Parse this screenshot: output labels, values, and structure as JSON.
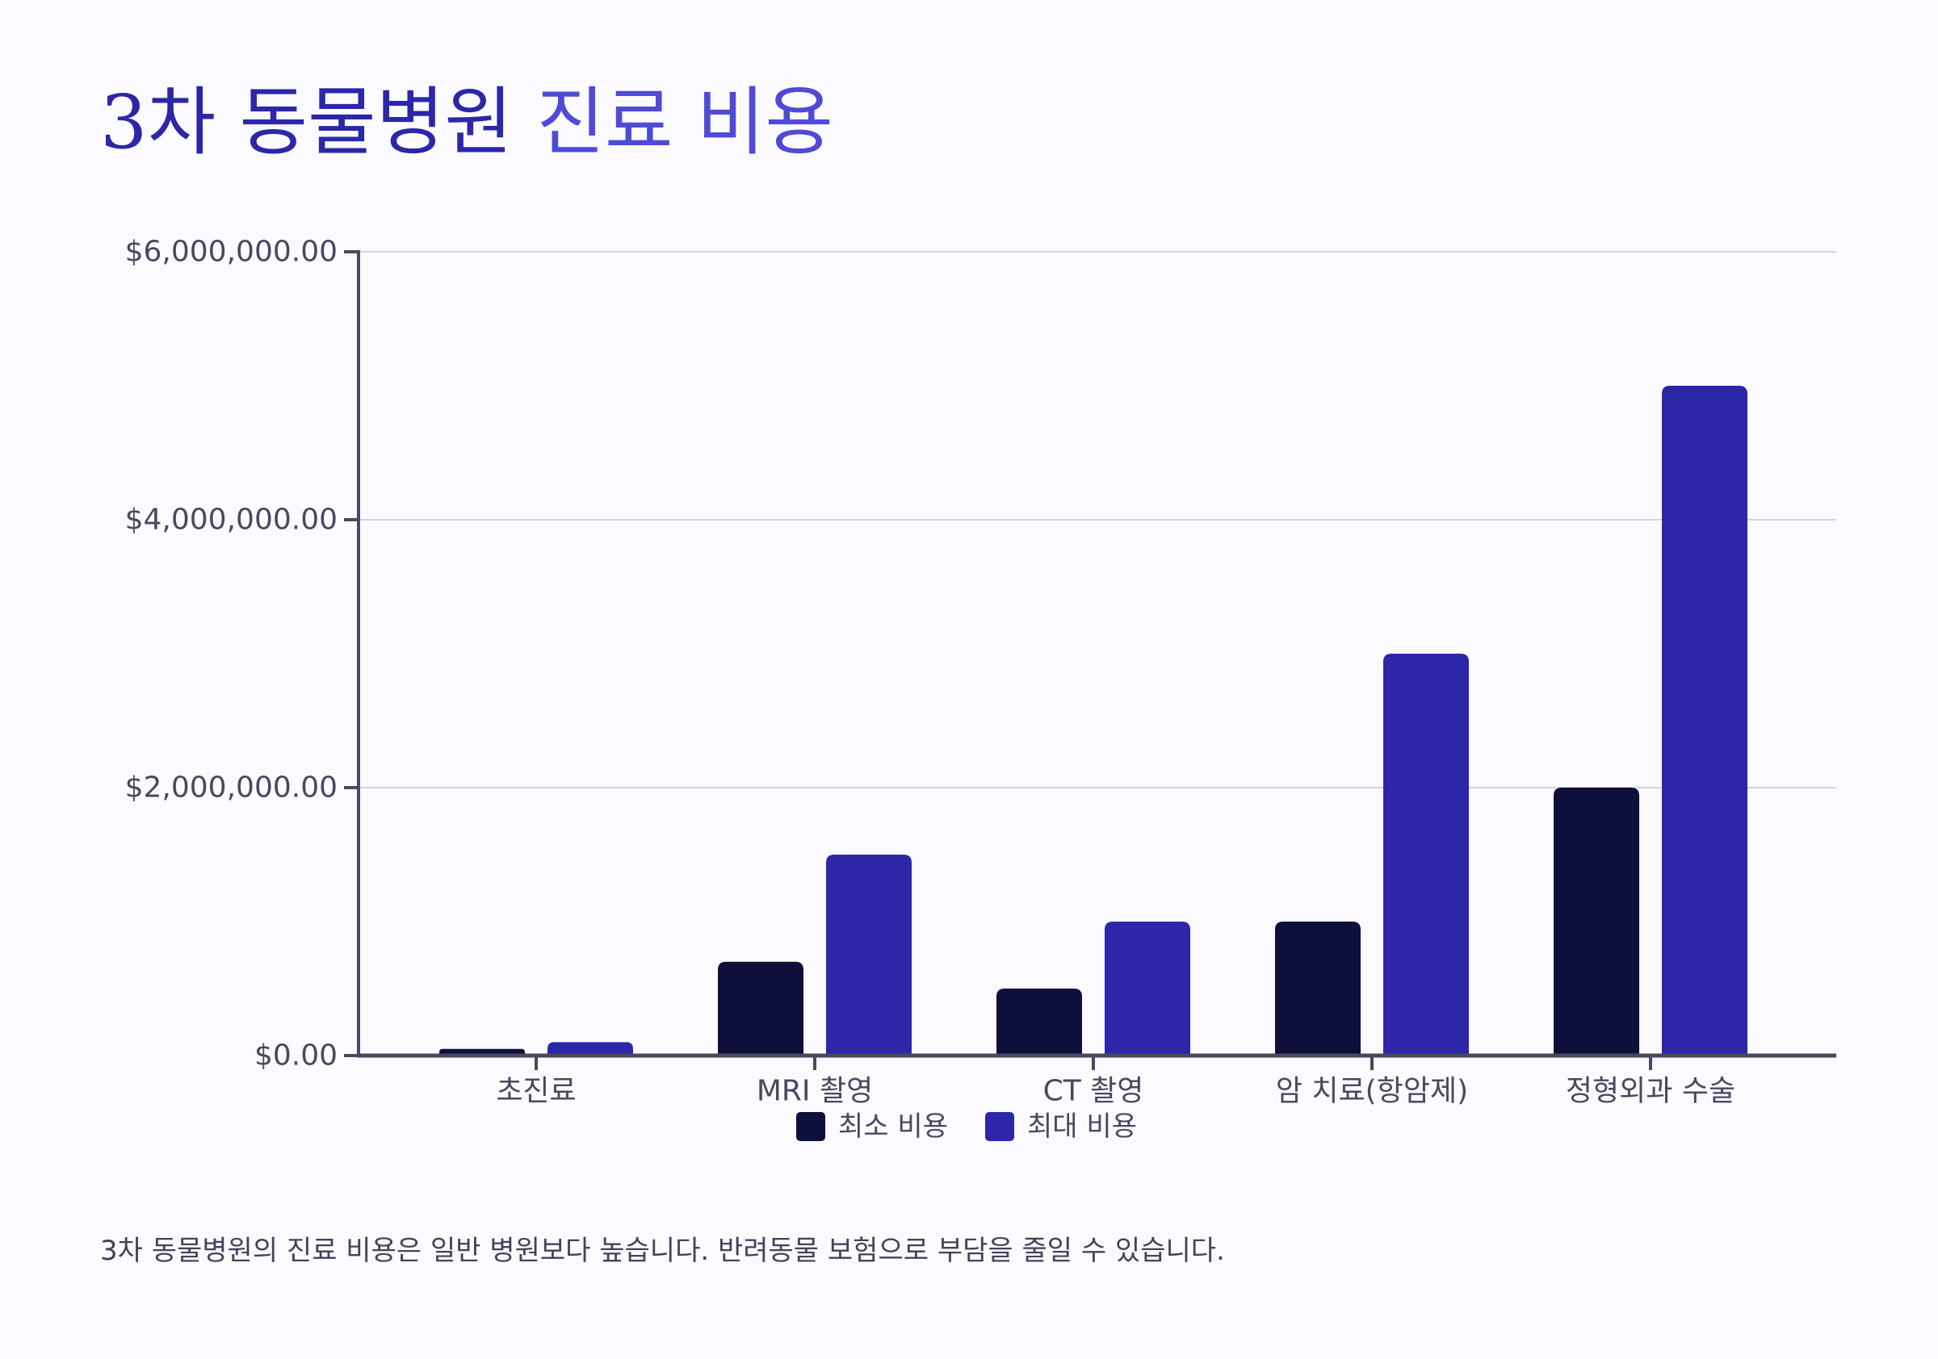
{
  "title": {
    "part1": "3차 동물병원",
    "part2": "진료 비용"
  },
  "footnote": "3차 동물병원의 진료 비용은 일반 병원보다 높습니다. 반려동물 보험으로 부담을 줄일 수 있습니다.",
  "colors": {
    "title_primary": "#2c27a8",
    "title_secondary": "#4f4bd6",
    "series_min": "#0f0f3b",
    "series_max": "#2c27a8",
    "axis": "#4a4860",
    "grid": "#d3d3dc"
  },
  "chart_data": {
    "type": "bar",
    "categories": [
      "초진료",
      "MRI 촬영",
      "CT 촬영",
      "암 치료(항암제)",
      "정형외과 수술"
    ],
    "series": [
      {
        "name": "최소 비용",
        "values": [
          50000,
          700000,
          500000,
          1000000,
          2000000
        ]
      },
      {
        "name": "최대 비용",
        "values": [
          100000,
          1500000,
          1000000,
          3000000,
          5000000
        ]
      }
    ],
    "y_ticks": [
      0,
      2000000,
      4000000,
      6000000
    ],
    "y_tick_labels": [
      "$0.00",
      "$2,000,000.00",
      "$4,000,000.00",
      "$6,000,000.00"
    ],
    "ylim": [
      0,
      6000000
    ],
    "xlabel": "",
    "ylabel": "",
    "grid": true,
    "legend_position": "bottom-center"
  }
}
